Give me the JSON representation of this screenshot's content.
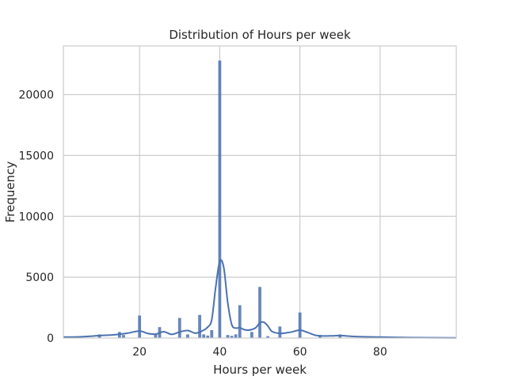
{
  "chart_data": {
    "type": "bar",
    "title": "Distribution of Hours per week",
    "xlabel": "Hours per week",
    "ylabel": "Frequency",
    "xlim": [
      1,
      99
    ],
    "ylim": [
      0,
      24000
    ],
    "x_ticks": [
      20,
      40,
      60,
      80
    ],
    "y_ticks": [
      0,
      5000,
      10000,
      15000,
      20000
    ],
    "grid": true,
    "bar_color": "#4c72b0",
    "bars": [
      {
        "x": 10,
        "value": 300
      },
      {
        "x": 15,
        "value": 500
      },
      {
        "x": 16,
        "value": 250
      },
      {
        "x": 20,
        "value": 1850
      },
      {
        "x": 24,
        "value": 300
      },
      {
        "x": 25,
        "value": 900
      },
      {
        "x": 30,
        "value": 1650
      },
      {
        "x": 32,
        "value": 300
      },
      {
        "x": 35,
        "value": 1900
      },
      {
        "x": 36,
        "value": 300
      },
      {
        "x": 37,
        "value": 200
      },
      {
        "x": 38,
        "value": 650
      },
      {
        "x": 40,
        "value": 22800
      },
      {
        "x": 42,
        "value": 250
      },
      {
        "x": 43,
        "value": 180
      },
      {
        "x": 44,
        "value": 300
      },
      {
        "x": 45,
        "value": 2700
      },
      {
        "x": 48,
        "value": 500
      },
      {
        "x": 50,
        "value": 4200
      },
      {
        "x": 52,
        "value": 150
      },
      {
        "x": 55,
        "value": 950
      },
      {
        "x": 60,
        "value": 2100
      },
      {
        "x": 65,
        "value": 250
      },
      {
        "x": 70,
        "value": 300
      },
      {
        "x": 80,
        "value": 120
      }
    ],
    "kde": {
      "x": [
        1,
        5,
        10,
        14,
        17,
        20,
        22,
        24,
        26,
        28,
        30,
        32,
        34,
        36,
        37,
        38,
        39,
        40,
        41,
        42,
        43,
        44,
        45,
        46,
        47,
        48,
        49,
        50,
        51,
        52,
        53,
        55,
        57,
        58,
        60,
        62,
        64,
        66,
        68,
        70,
        74,
        80,
        85,
        90,
        99
      ],
      "y": [
        80,
        100,
        200,
        280,
        400,
        580,
        380,
        320,
        520,
        300,
        500,
        620,
        400,
        650,
        900,
        1500,
        4200,
        6300,
        5800,
        2900,
        1100,
        820,
        850,
        700,
        650,
        700,
        850,
        1250,
        1300,
        1000,
        550,
        380,
        450,
        500,
        650,
        450,
        220,
        170,
        180,
        200,
        120,
        80,
        50,
        30,
        20
      ]
    }
  }
}
